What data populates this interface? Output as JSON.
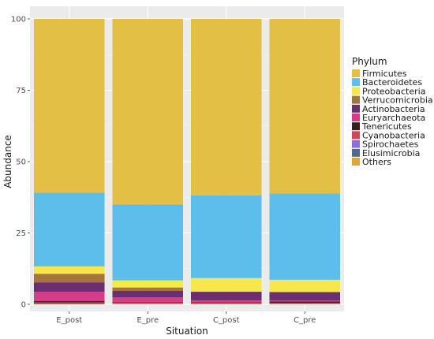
{
  "chart_data": {
    "type": "bar",
    "stacked": true,
    "xlabel": "Situation",
    "ylabel": "Abundance",
    "ylim": [
      0,
      100
    ],
    "yticks": [
      0,
      25,
      50,
      75,
      100
    ],
    "grid": true,
    "legend_position": "right",
    "legend_title": "Phylum",
    "categories": [
      "E_post",
      "E_pre",
      "C_post",
      "C_pre"
    ],
    "series": [
      {
        "name": "Firmicutes",
        "color": "#E3BF45",
        "values": [
          60.9,
          65.0,
          61.8,
          61.2
        ]
      },
      {
        "name": "Bacteroidetes",
        "color": "#5DBEEB",
        "values": [
          25.8,
          26.6,
          29.0,
          30.2
        ]
      },
      {
        "name": "Proteobacteria",
        "color": "#F6E84A",
        "values": [
          2.6,
          2.5,
          4.8,
          4.3
        ]
      },
      {
        "name": "Verrucomicrobia",
        "color": "#A6753B",
        "values": [
          3.0,
          1.2,
          0.0,
          0.0
        ]
      },
      {
        "name": "Actinobacteria",
        "color": "#6B2E6E",
        "values": [
          3.3,
          2.3,
          3.0,
          3.0
        ]
      },
      {
        "name": "Euryarchaeota",
        "color": "#D63C89",
        "values": [
          3.3,
          1.5,
          0.6,
          0.3
        ]
      },
      {
        "name": "Tenericutes",
        "color": "#3A1F1F",
        "values": [
          0.4,
          0.2,
          0.2,
          0.5
        ]
      },
      {
        "name": "Cyanobacteria",
        "color": "#D44651",
        "values": [
          0.7,
          0.5,
          0.5,
          0.4
        ]
      },
      {
        "name": "Spirochaetes",
        "color": "#8A6FD9",
        "values": [
          0.0,
          0.0,
          0.0,
          0.0
        ]
      },
      {
        "name": "Elusimicrobia",
        "color": "#4E6B86",
        "values": [
          0.0,
          0.0,
          0.0,
          0.0
        ]
      },
      {
        "name": "Others",
        "color": "#E0A43A",
        "values": [
          0.0,
          0.2,
          0.1,
          0.1
        ]
      }
    ]
  }
}
